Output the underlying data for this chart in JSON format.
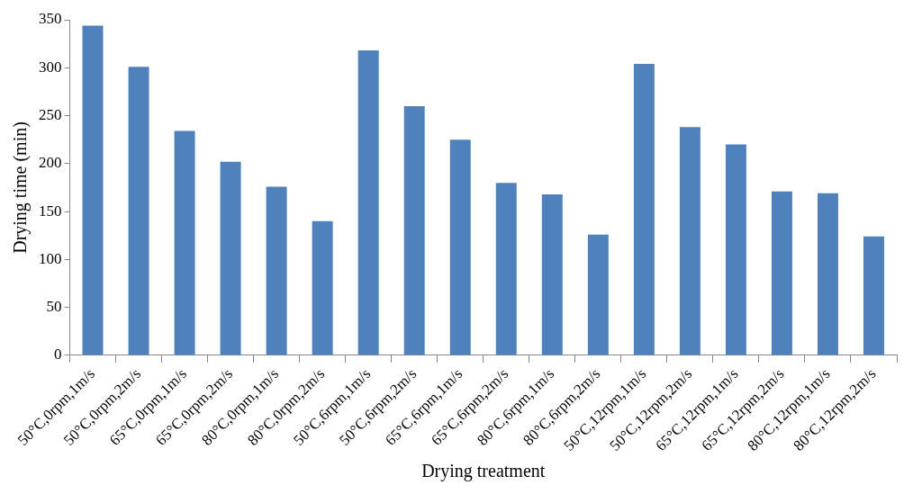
{
  "chart_data": {
    "type": "bar",
    "xlabel": "Drying treatment",
    "ylabel": "Drying time (min)",
    "categories": [
      "50°C,0rpm,1m/s",
      "50°C,0rpm,2m/s",
      "65°C,0rpm,1m/s",
      "65°C,0rpm,2m/s",
      "80°C,0rpm,1m/s",
      "80°C,0rpm,2m/s",
      "50°C,6rpm,1m/s",
      "50°C,6rpm,2m/s",
      "65°C,6rpm,1m/s",
      "65°C,6rpm,2m/s",
      "80°C,6rpm,1m/s",
      "80°C,6rpm,2m/s",
      "50°C,12rpm,1m/s",
      "50°C,12rpm,2m/s",
      "65°C,12rpm,1m/s",
      "65°C,12rpm,2m/s",
      "80°C,12rpm,1m/s",
      "80°C,12rpm,2m/s"
    ],
    "values": [
      344,
      301,
      234,
      202,
      176,
      140,
      318,
      260,
      225,
      180,
      168,
      126,
      304,
      238,
      220,
      171,
      169,
      124
    ],
    "color": "#4f81bd",
    "ylim": [
      0,
      350
    ],
    "yticks": [
      0,
      50,
      100,
      150,
      200,
      250,
      300,
      350
    ],
    "grid": false
  }
}
